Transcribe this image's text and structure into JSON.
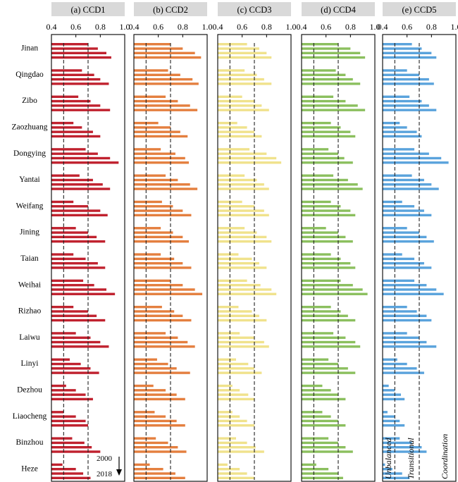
{
  "chart_data": {
    "type": "bar",
    "orientation": "horizontal",
    "xlim": [
      0.4,
      1.0
    ],
    "xticks": [
      "0.4",
      "0.6",
      "0.8",
      "1.0"
    ],
    "thresholds": [
      0.5,
      0.7
    ],
    "annotation": {
      "start": "2000",
      "end": "2018"
    },
    "zone_labels": [
      "Unbalanced",
      "Transitional",
      "Coordination"
    ],
    "categories": [
      "Jinan",
      "Qingdao",
      "Zibo",
      "Zaozhuang",
      "Dongying",
      "Yantai",
      "Weifang",
      "Jining",
      "Taian",
      "Weihai",
      "Rizhao",
      "Laiwu",
      "Linyi",
      "Dezhou",
      "Liaocheng",
      "Binzhou",
      "Heze"
    ],
    "panels": [
      {
        "title": "(a) CCD1",
        "color": "#c0212e",
        "values": [
          [
            0.7,
            0.78,
            0.85,
            0.89
          ],
          [
            0.65,
            0.75,
            0.8,
            0.87
          ],
          [
            0.62,
            0.72,
            0.8,
            0.88
          ],
          [
            0.58,
            0.65,
            0.74,
            0.8
          ],
          [
            0.68,
            0.78,
            0.88,
            0.95
          ],
          [
            0.63,
            0.74,
            0.82,
            0.88
          ],
          [
            0.58,
            0.7,
            0.8,
            0.86
          ],
          [
            0.6,
            0.7,
            0.77,
            0.84
          ],
          [
            0.58,
            0.68,
            0.78,
            0.84
          ],
          [
            0.66,
            0.75,
            0.85,
            0.92
          ],
          [
            0.58,
            0.7,
            0.77,
            0.84
          ],
          [
            0.6,
            0.72,
            0.8,
            0.87
          ],
          [
            0.55,
            0.64,
            0.72,
            0.79
          ],
          [
            0.52,
            0.6,
            0.68,
            0.74
          ],
          [
            0.5,
            0.6,
            0.68,
            0.7
          ],
          [
            0.57,
            0.67,
            0.73,
            0.8
          ],
          [
            0.49,
            0.6,
            0.66,
            0.72
          ]
        ]
      },
      {
        "title": "(b) CCD2",
        "color": "#e47f3f",
        "values": [
          [
            0.7,
            0.8,
            0.9,
            0.95
          ],
          [
            0.68,
            0.78,
            0.88,
            0.93
          ],
          [
            0.66,
            0.76,
            0.86,
            0.92
          ],
          [
            0.6,
            0.7,
            0.78,
            0.84
          ],
          [
            0.62,
            0.74,
            0.82,
            0.85
          ],
          [
            0.66,
            0.76,
            0.86,
            0.92
          ],
          [
            0.63,
            0.72,
            0.8,
            0.87
          ],
          [
            0.62,
            0.72,
            0.8,
            0.85
          ],
          [
            0.62,
            0.73,
            0.8,
            0.87
          ],
          [
            0.7,
            0.8,
            0.9,
            0.96
          ],
          [
            0.63,
            0.73,
            0.8,
            0.87
          ],
          [
            0.66,
            0.76,
            0.84,
            0.9
          ],
          [
            0.59,
            0.68,
            0.75,
            0.86
          ],
          [
            0.56,
            0.66,
            0.75,
            0.82
          ],
          [
            0.57,
            0.66,
            0.75,
            0.82
          ],
          [
            0.58,
            0.68,
            0.76,
            0.83
          ],
          [
            0.53,
            0.64,
            0.74,
            0.82
          ]
        ]
      },
      {
        "title": "(c) CCD3",
        "color": "#f0e28c",
        "values": [
          [
            0.64,
            0.74,
            0.8,
            0.84
          ],
          [
            0.62,
            0.72,
            0.78,
            0.84
          ],
          [
            0.6,
            0.7,
            0.76,
            0.82
          ],
          [
            0.56,
            0.64,
            0.7,
            0.76
          ],
          [
            0.66,
            0.8,
            0.88,
            0.92
          ],
          [
            0.62,
            0.72,
            0.78,
            0.82
          ],
          [
            0.6,
            0.7,
            0.78,
            0.82
          ],
          [
            0.62,
            0.72,
            0.8,
            0.84
          ],
          [
            0.57,
            0.68,
            0.74,
            0.8
          ],
          [
            0.64,
            0.75,
            0.84,
            0.88
          ],
          [
            0.57,
            0.68,
            0.74,
            0.8
          ],
          [
            0.58,
            0.7,
            0.78,
            0.82
          ],
          [
            0.55,
            0.65,
            0.7,
            0.76
          ],
          [
            0.52,
            0.58,
            0.65,
            0.7
          ],
          [
            0.52,
            0.58,
            0.64,
            0.7
          ],
          [
            0.55,
            0.64,
            0.71,
            0.78
          ],
          [
            0.48,
            0.58,
            0.64,
            0.7
          ]
        ]
      },
      {
        "title": "(d) CCD4",
        "color": "#8bbf5e",
        "values": [
          [
            0.7,
            0.8,
            0.88,
            0.92
          ],
          [
            0.68,
            0.76,
            0.82,
            0.88
          ],
          [
            0.66,
            0.76,
            0.86,
            0.92
          ],
          [
            0.64,
            0.72,
            0.8,
            0.84
          ],
          [
            0.62,
            0.7,
            0.75,
            0.82
          ],
          [
            0.66,
            0.78,
            0.86,
            0.9
          ],
          [
            0.64,
            0.72,
            0.8,
            0.84
          ],
          [
            0.6,
            0.7,
            0.76,
            0.82
          ],
          [
            0.64,
            0.72,
            0.8,
            0.84
          ],
          [
            0.72,
            0.82,
            0.9,
            0.94
          ],
          [
            0.64,
            0.72,
            0.78,
            0.84
          ],
          [
            0.66,
            0.76,
            0.84,
            0.88
          ],
          [
            0.62,
            0.7,
            0.78,
            0.84
          ],
          [
            0.57,
            0.64,
            0.7,
            0.76
          ],
          [
            0.57,
            0.64,
            0.7,
            0.76
          ],
          [
            0.62,
            0.7,
            0.76,
            0.82
          ],
          [
            0.52,
            0.62,
            0.7,
            0.74
          ]
        ]
      },
      {
        "title": "(e) CCD5",
        "color": "#5aa3dc",
        "values": [
          [
            0.64,
            0.72,
            0.8,
            0.84
          ],
          [
            0.6,
            0.7,
            0.78,
            0.82
          ],
          [
            0.62,
            0.72,
            0.78,
            0.84
          ],
          [
            0.54,
            0.6,
            0.68,
            0.72
          ],
          [
            0.66,
            0.78,
            0.88,
            0.94
          ],
          [
            0.64,
            0.74,
            0.8,
            0.86
          ],
          [
            0.56,
            0.66,
            0.74,
            0.8
          ],
          [
            0.6,
            0.7,
            0.76,
            0.82
          ],
          [
            0.56,
            0.66,
            0.74,
            0.8
          ],
          [
            0.66,
            0.76,
            0.84,
            0.9
          ],
          [
            0.6,
            0.68,
            0.76,
            0.8
          ],
          [
            0.6,
            0.7,
            0.76,
            0.84
          ],
          [
            0.52,
            0.6,
            0.68,
            0.74
          ],
          [
            0.45,
            0.5,
            0.55,
            0.58
          ],
          [
            0.44,
            0.5,
            0.54,
            0.58
          ],
          [
            0.54,
            0.64,
            0.72,
            0.76
          ],
          [
            0.42,
            0.48,
            0.56,
            0.62
          ]
        ]
      }
    ]
  }
}
